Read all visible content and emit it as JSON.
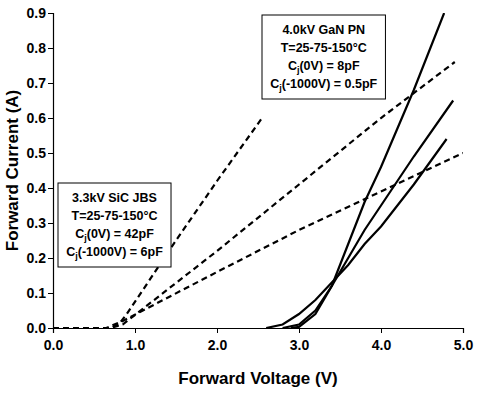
{
  "chart_data": {
    "type": "line",
    "x_label": "Forward Voltage (V)",
    "y_label": "Forward Current (A)",
    "xlim": [
      0,
      5
    ],
    "ylim": [
      0,
      0.9
    ],
    "xticks": [
      {
        "value": 0,
        "label": "0.0"
      },
      {
        "value": 1,
        "label": "1.0"
      },
      {
        "value": 2,
        "label": "2.0"
      },
      {
        "value": 3,
        "label": "3.0"
      },
      {
        "value": 4,
        "label": "4.0"
      },
      {
        "value": 5,
        "label": "5.0"
      }
    ],
    "yticks": [
      {
        "value": 0,
        "label": "0.0"
      },
      0.1,
      0.2,
      0.3,
      0.4,
      0.5,
      0.6,
      0.7,
      0.8,
      0.9
    ],
    "grid": false,
    "series": [
      {
        "color": "#000000",
        "line_style": "dashed",
        "x": [
          0,
          0.7,
          0.8,
          0.9,
          1.5,
          2.0,
          2.55
        ],
        "values": [
          0,
          0,
          0.01,
          0.04,
          0.25,
          0.42,
          0.6
        ]
      },
      {
        "color": "#000000",
        "line_style": "dashed",
        "x": [
          0,
          0.7,
          0.85,
          2.0,
          3.0,
          4.0,
          4.9
        ],
        "values": [
          0,
          0,
          0.01,
          0.22,
          0.41,
          0.6,
          0.76
        ]
      },
      {
        "color": "#000000",
        "line_style": "dashed",
        "x": [
          0,
          0.65,
          0.85,
          2.0,
          3.0,
          4.0,
          5.0
        ],
        "values": [
          0,
          0,
          0.02,
          0.16,
          0.28,
          0.39,
          0.5
        ]
      },
      {
        "color": "#000000",
        "line_style": "solid",
        "x": [
          2.9,
          3.0,
          3.2,
          3.4,
          3.6,
          3.8,
          4.0,
          4.4,
          4.77
        ],
        "values": [
          0,
          0.003,
          0.04,
          0.12,
          0.24,
          0.36,
          0.46,
          0.68,
          0.9
        ]
      },
      {
        "color": "#000000",
        "line_style": "solid",
        "x": [
          2.8,
          3.0,
          3.2,
          3.4,
          3.6,
          3.8,
          4.0,
          4.4,
          4.88
        ],
        "values": [
          0,
          0.01,
          0.05,
          0.12,
          0.2,
          0.28,
          0.35,
          0.49,
          0.65
        ]
      },
      {
        "color": "#000000",
        "line_style": "solid",
        "x": [
          2.6,
          2.8,
          3.0,
          3.2,
          3.4,
          3.6,
          3.8,
          4.0,
          4.4,
          4.8
        ],
        "values": [
          0,
          0.01,
          0.04,
          0.08,
          0.13,
          0.18,
          0.24,
          0.29,
          0.41,
          0.54
        ]
      }
    ],
    "annotations": [
      {
        "text": [
          "3.3kV SiC JBS",
          "T=25-75-150°C",
          "Cj(0V) = 42pF",
          "Cj(-1000V) = 6pF"
        ]
      },
      {
        "text": [
          "4.0kV GaN PN",
          "T=25-75-150°C",
          "Cj(0V) = 8pF",
          "Cj(-1000V) = 0.5pF"
        ]
      }
    ]
  }
}
